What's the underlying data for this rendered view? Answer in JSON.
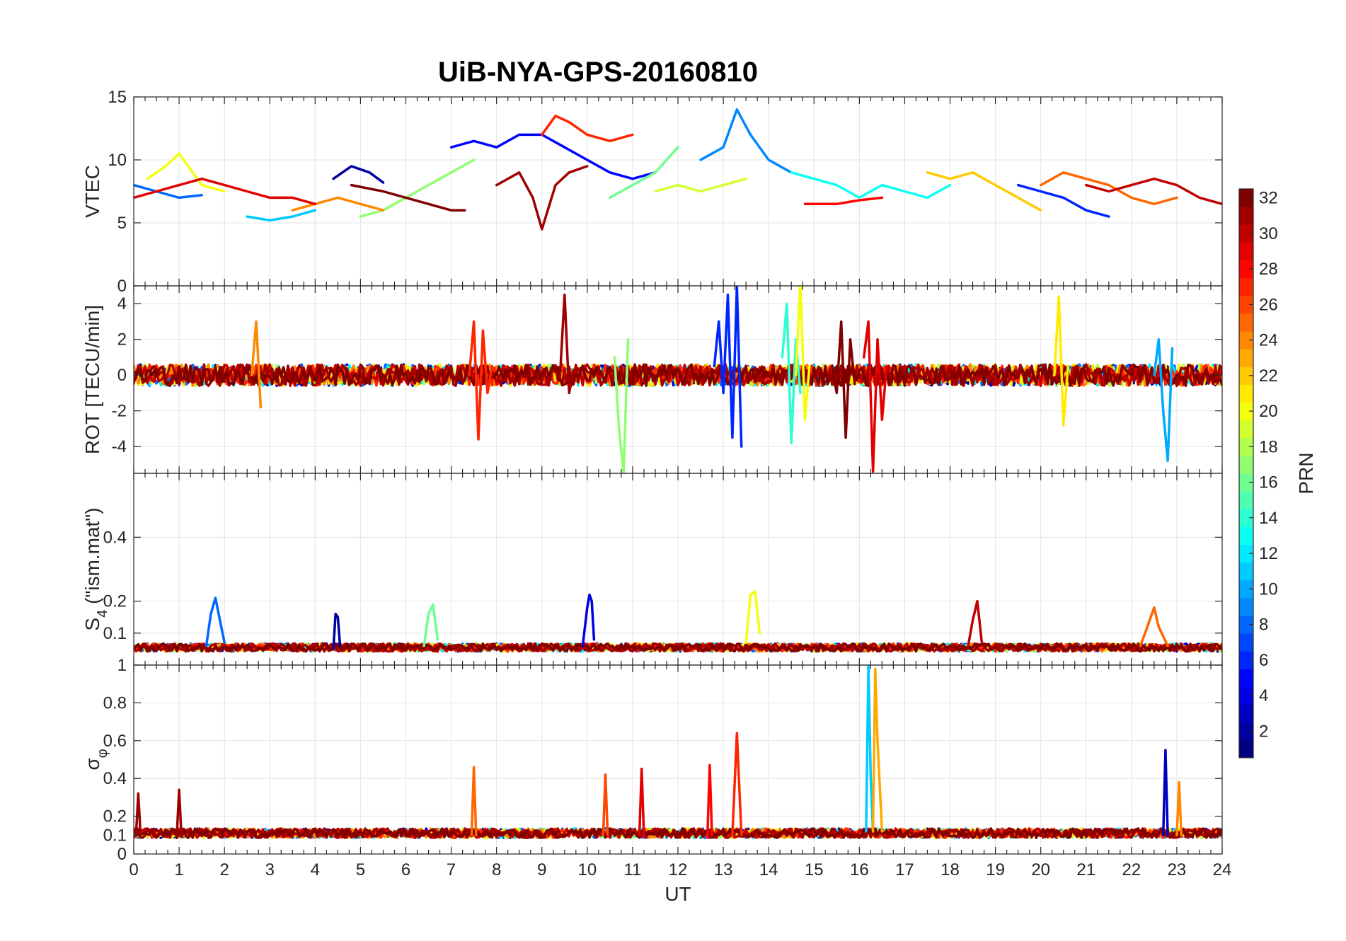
{
  "figure": {
    "title": "UiB-NYA-GPS-20160810"
  },
  "chart_data": {
    "type": "line",
    "title": "UiB-NYA-GPS-20160810",
    "xlabel": "UT",
    "xlim": [
      0,
      24
    ],
    "xticks": [
      "0",
      "1",
      "2",
      "3",
      "4",
      "5",
      "6",
      "7",
      "8",
      "9",
      "10",
      "11",
      "12",
      "13",
      "14",
      "15",
      "16",
      "17",
      "18",
      "19",
      "20",
      "21",
      "22",
      "23",
      "24"
    ],
    "grid": true,
    "panels": [
      {
        "id": "vtec",
        "ylabel": "VTEC",
        "ylim": [
          0,
          15
        ],
        "yticks": [
          {
            "v": 0,
            "t": "0"
          },
          {
            "v": 5,
            "t": "5"
          },
          {
            "v": 10,
            "t": "10"
          },
          {
            "v": 15,
            "t": "15"
          }
        ],
        "series": [
          {
            "prn": 2,
            "x": [
              4.4,
              4.8,
              5.2,
              5.5
            ],
            "y": [
              8.5,
              9.5,
              9.0,
              8.2
            ]
          },
          {
            "prn": 5,
            "x": [
              7.0,
              7.5,
              8.0,
              8.5,
              9.0,
              9.5,
              10.0,
              10.5,
              11.0,
              11.5
            ],
            "y": [
              11,
              11.5,
              11,
              12,
              12,
              11,
              10,
              9,
              8.5,
              9
            ]
          },
          {
            "prn": 6,
            "x": [
              19.5,
              20.0,
              20.5,
              21.0,
              21.5
            ],
            "y": [
              8,
              7.5,
              7,
              6,
              5.5
            ]
          },
          {
            "prn": 8,
            "x": [
              0,
              0.5,
              1.0,
              1.5
            ],
            "y": [
              8,
              7.5,
              7,
              7.2
            ]
          },
          {
            "prn": 9,
            "x": [
              12.5,
              13.0,
              13.3,
              13.6,
              14.0,
              14.5
            ],
            "y": [
              10,
              11,
              14,
              12,
              10,
              9
            ]
          },
          {
            "prn": 11,
            "x": [
              2.5,
              3.0,
              3.5,
              4.0
            ],
            "y": [
              5.5,
              5.2,
              5.5,
              6
            ]
          },
          {
            "prn": 13,
            "x": [
              14.5,
              15.0,
              15.5,
              16.0,
              16.5,
              17.0,
              17.5,
              18.0
            ],
            "y": [
              9,
              8.5,
              8,
              7,
              8,
              7.5,
              7,
              8
            ]
          },
          {
            "prn": 16,
            "x": [
              10.5,
              11.0,
              11.5,
              12.0
            ],
            "y": [
              7,
              8,
              9,
              11
            ]
          },
          {
            "prn": 17,
            "x": [
              5.0,
              5.5,
              6.0,
              6.5,
              7.0,
              7.5
            ],
            "y": [
              5.5,
              6,
              7,
              8,
              9,
              10
            ]
          },
          {
            "prn": 19,
            "x": [
              11.5,
              12.0,
              12.5,
              13.0,
              13.5
            ],
            "y": [
              7.5,
              8,
              7.5,
              8,
              8.5
            ]
          },
          {
            "prn": 20,
            "x": [
              0.3,
              0.7,
              1.0,
              1.5,
              2.0
            ],
            "y": [
              8.5,
              9.5,
              10.5,
              8,
              7.5
            ]
          },
          {
            "prn": 22,
            "x": [
              17.5,
              18.0,
              18.5,
              19.0,
              19.5,
              20.0
            ],
            "y": [
              9,
              8.5,
              9,
              8,
              7,
              6
            ]
          },
          {
            "prn": 24,
            "x": [
              3.5,
              4.0,
              4.5,
              5.0,
              5.5
            ],
            "y": [
              6,
              6.5,
              7,
              6.5,
              6
            ]
          },
          {
            "prn": 25,
            "x": [
              20.0,
              20.5,
              21.0,
              21.5,
              22.0,
              22.5,
              23.0
            ],
            "y": [
              8,
              9,
              8.5,
              8,
              7,
              6.5,
              7
            ]
          },
          {
            "prn": 27,
            "x": [
              9.0,
              9.3,
              9.6,
              10.0,
              10.5,
              11.0
            ],
            "y": [
              12,
              13.5,
              13,
              12,
              11.5,
              12
            ]
          },
          {
            "prn": 28,
            "x": [
              14.8,
              15.5,
              16.0,
              16.5
            ],
            "y": [
              6.5,
              6.5,
              6.8,
              7
            ]
          },
          {
            "prn": 29,
            "x": [
              0,
              0.5,
              1.0,
              1.5,
              2.0,
              2.5,
              3.0,
              3.5,
              4.0
            ],
            "y": [
              7,
              7.5,
              8,
              8.5,
              8,
              7.5,
              7,
              7,
              6.5
            ]
          },
          {
            "prn": 30,
            "x": [
              21.0,
              21.5,
              22.0,
              22.5,
              23.0,
              23.5,
              24.0
            ],
            "y": [
              8,
              7.5,
              8,
              8.5,
              8,
              7,
              6.5
            ]
          },
          {
            "prn": 31,
            "x": [
              8.0,
              8.5,
              8.8,
              9.0,
              9.3,
              9.6,
              10.0
            ],
            "y": [
              8,
              9,
              7,
              4.5,
              8,
              9,
              9.5
            ]
          },
          {
            "prn": 32,
            "x": [
              4.8,
              5.5,
              6.0,
              6.5,
              7.0,
              7.3
            ],
            "y": [
              8,
              7.5,
              7,
              6.5,
              6,
              6
            ]
          }
        ]
      },
      {
        "id": "rot",
        "ylabel": "ROT [TECU/min]",
        "ylim": [
          -5.5,
          5
        ],
        "yticks": [
          {
            "v": -4,
            "t": "-4"
          },
          {
            "v": -2,
            "t": "-2"
          },
          {
            "v": 0,
            "t": "0"
          },
          {
            "v": 2,
            "t": "2"
          },
          {
            "v": 4,
            "t": "4"
          }
        ],
        "series": [
          {
            "prn": 6,
            "x": [
              12.8,
              12.9,
              13.0,
              13.1,
              13.2,
              13.3,
              13.4
            ],
            "y": [
              0.5,
              3,
              -1,
              4.5,
              -3.5,
              5,
              -4
            ]
          },
          {
            "prn": 10,
            "x": [
              22.5,
              22.6,
              22.7,
              22.8,
              22.9
            ],
            "y": [
              0,
              2,
              -2,
              -4.8,
              1.5
            ]
          },
          {
            "prn": 14,
            "x": [
              14.3,
              14.4,
              14.5,
              14.6,
              14.7
            ],
            "y": [
              1,
              4,
              -3.8,
              2,
              -1
            ]
          },
          {
            "prn": 17,
            "x": [
              10.6,
              10.7,
              10.8,
              10.9
            ],
            "y": [
              1,
              -3,
              -5.5,
              2
            ]
          },
          {
            "prn": 20,
            "x": [
              14.6,
              14.7,
              14.8,
              14.9
            ],
            "y": [
              0,
              5.3,
              -2.5,
              0.5
            ]
          },
          {
            "prn": 21,
            "x": [
              20.3,
              20.4,
              20.5,
              20.6
            ],
            "y": [
              0,
              4.4,
              -2.8,
              0.5
            ]
          },
          {
            "prn": 24,
            "x": [
              2.6,
              2.7,
              2.8
            ],
            "y": [
              0,
              3,
              -1.8
            ]
          },
          {
            "prn": 27,
            "x": [
              7.4,
              7.5,
              7.6,
              7.7,
              7.8,
              7.9
            ],
            "y": [
              0,
              3,
              -3.6,
              2.5,
              -1,
              0.5
            ]
          },
          {
            "prn": 29,
            "x": [
              16.1,
              16.2,
              16.3,
              16.4,
              16.5,
              16.6
            ],
            "y": [
              1,
              3,
              -5.4,
              2,
              -2.5,
              0.5
            ]
          },
          {
            "prn": 31,
            "x": [
              9.4,
              9.5,
              9.6,
              9.7
            ],
            "y": [
              0,
              4.5,
              -1,
              0.3
            ]
          },
          {
            "prn": 32,
            "x": [
              15.4,
              15.5,
              15.6,
              15.7,
              15.8,
              15.9
            ],
            "y": [
              0.5,
              -1,
              3,
              -3.5,
              2,
              -0.5
            ]
          }
        ],
        "baseline_band": {
          "x": [
            0,
            24
          ],
          "amplitude": 0.6
        }
      },
      {
        "id": "s4",
        "ylabel": "S4 (\"ism.mat\")",
        "ylabel_main": "S",
        "ylabel_sub": "4",
        "ylabel_rest": " (\"ism.mat\")",
        "ylim": [
          0,
          0.6
        ],
        "yticks": [
          {
            "v": 0.1,
            "t": "0.1"
          },
          {
            "v": 0.2,
            "t": "0.2"
          },
          {
            "v": 0.4,
            "t": "0.4"
          }
        ],
        "series": [
          {
            "prn": 2,
            "x": [
              4.4,
              4.45,
              4.5,
              4.55
            ],
            "y": [
              0.05,
              0.16,
              0.15,
              0.06
            ]
          },
          {
            "prn": 4,
            "x": [
              9.9,
              10.0,
              10.05,
              10.1,
              10.15
            ],
            "y": [
              0.06,
              0.18,
              0.22,
              0.2,
              0.08
            ]
          },
          {
            "prn": 8,
            "x": [
              1.6,
              1.7,
              1.8,
              1.9,
              2.0
            ],
            "y": [
              0.06,
              0.16,
              0.21,
              0.14,
              0.07
            ]
          },
          {
            "prn": 16,
            "x": [
              6.4,
              6.5,
              6.6,
              6.7
            ],
            "y": [
              0.06,
              0.16,
              0.19,
              0.08
            ]
          },
          {
            "prn": 20,
            "x": [
              13.5,
              13.6,
              13.7,
              13.8
            ],
            "y": [
              0.07,
              0.22,
              0.23,
              0.1
            ]
          },
          {
            "prn": 25,
            "x": [
              22.2,
              22.4,
              22.5,
              22.6,
              22.8
            ],
            "y": [
              0.06,
              0.14,
              0.18,
              0.12,
              0.06
            ]
          },
          {
            "prn": 30,
            "x": [
              18.4,
              18.5,
              18.6,
              18.7
            ],
            "y": [
              0.06,
              0.14,
              0.2,
              0.07
            ]
          }
        ],
        "baseline_level": 0.05
      },
      {
        "id": "sigma_phi",
        "ylabel": "σφ",
        "ylabel_main": "σ",
        "ylabel_sub": "φ",
        "ylim": [
          0,
          1
        ],
        "yticks": [
          {
            "v": 0,
            "t": "0"
          },
          {
            "v": 0.1,
            "t": "0.1"
          },
          {
            "v": 0.2,
            "t": "0.2"
          },
          {
            "v": 0.4,
            "t": "0.4"
          },
          {
            "v": 0.6,
            "t": "0.6"
          },
          {
            "v": 0.8,
            "t": "0.8"
          },
          {
            "v": 1,
            "t": "1"
          }
        ],
        "series": [
          {
            "prn": 11,
            "x": [
              16.15,
              16.2,
              16.25,
              16.3
            ],
            "y": [
              0.12,
              1.0,
              0.4,
              0.12
            ]
          },
          {
            "prn": 23,
            "x": [
              16.3,
              16.35,
              16.4,
              16.5
            ],
            "y": [
              0.12,
              0.98,
              0.6,
              0.12
            ]
          },
          {
            "prn": 27,
            "x": [
              13.2,
              13.3,
              13.4
            ],
            "y": [
              0.1,
              0.64,
              0.1
            ]
          },
          {
            "prn": 25,
            "x": [
              7.45,
              7.5,
              7.55
            ],
            "y": [
              0.1,
              0.46,
              0.1
            ]
          },
          {
            "prn": 29,
            "x": [
              11.15,
              11.2,
              11.25
            ],
            "y": [
              0.1,
              0.45,
              0.1
            ]
          },
          {
            "prn": 28,
            "x": [
              12.65,
              12.7,
              12.75
            ],
            "y": [
              0.1,
              0.47,
              0.1
            ]
          },
          {
            "prn": 26,
            "x": [
              10.35,
              10.4,
              10.45
            ],
            "y": [
              0.1,
              0.42,
              0.1
            ]
          },
          {
            "prn": 3,
            "x": [
              22.7,
              22.75,
              22.8
            ],
            "y": [
              0.1,
              0.55,
              0.1
            ]
          },
          {
            "prn": 31,
            "x": [
              0.05,
              0.1,
              0.15
            ],
            "y": [
              0.1,
              0.32,
              0.1
            ]
          },
          {
            "prn": 31,
            "x": [
              0.95,
              1.0,
              1.05
            ],
            "y": [
              0.1,
              0.34,
              0.1
            ]
          },
          {
            "prn": 24,
            "x": [
              23.0,
              23.05,
              23.1
            ],
            "y": [
              0.1,
              0.38,
              0.1
            ]
          }
        ],
        "baseline_level": 0.1
      }
    ],
    "colorbar": {
      "label": "PRN",
      "range": [
        1,
        32
      ],
      "ticks": [
        "2",
        "4",
        "6",
        "8",
        "10",
        "12",
        "14",
        "16",
        "18",
        "20",
        "22",
        "24",
        "26",
        "28",
        "30",
        "32"
      ],
      "colormap": "jet",
      "levels": 32
    }
  }
}
